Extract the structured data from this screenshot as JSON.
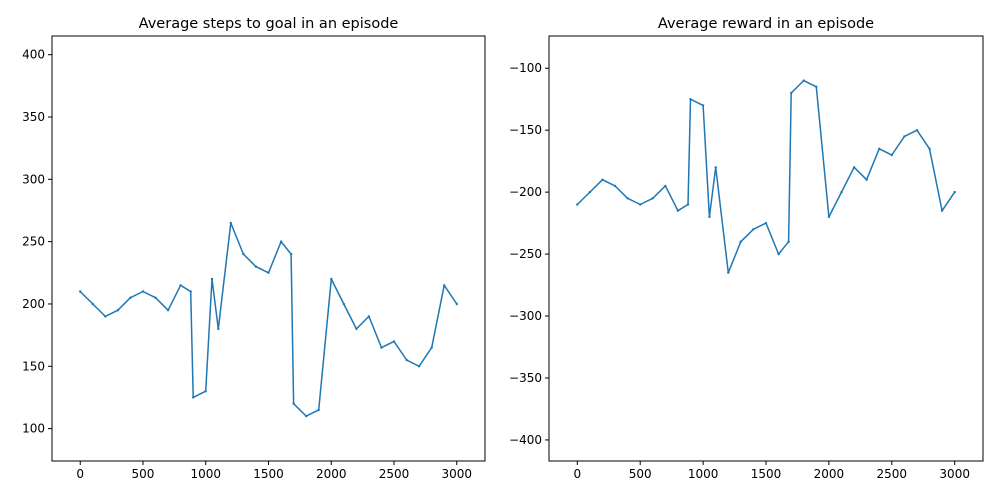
{
  "figure": {
    "background": "#ffffff"
  },
  "chart_data": [
    {
      "type": "line",
      "title": "Average steps to goal in an episode",
      "xlabel": "",
      "ylabel": "",
      "xlim": [
        -225,
        3225
      ],
      "ylim": [
        74,
        415
      ],
      "xticks": [
        0,
        500,
        1000,
        1500,
        2000,
        2500,
        3000
      ],
      "yticks": [
        100,
        150,
        200,
        250,
        300,
        350,
        400
      ],
      "grid": false,
      "legend": "none",
      "color": "#1f77b4",
      "series": [
        {
          "x": [
            0,
            100,
            200,
            300,
            400,
            500,
            600,
            700,
            800,
            880,
            900,
            1000,
            1050,
            1100,
            1200,
            1300,
            1400,
            1500,
            1600,
            1680,
            1700,
            1800,
            1900,
            2000,
            2100,
            2200,
            2300,
            2400,
            2500,
            2600,
            2700,
            2800,
            2900,
            3000
          ],
          "y": [
            210,
            200,
            190,
            195,
            205,
            210,
            205,
            195,
            215,
            210,
            125,
            130,
            220,
            180,
            265,
            240,
            230,
            225,
            250,
            240,
            120,
            110,
            115,
            220,
            200,
            180,
            190,
            165,
            170,
            155,
            150,
            165,
            215,
            200
          ]
        }
      ]
    },
    {
      "type": "line",
      "title": "Average reward in an episode",
      "xlabel": "",
      "ylabel": "",
      "xlim": [
        -225,
        3225
      ],
      "ylim": [
        -417,
        -74
      ],
      "xticks": [
        0,
        500,
        1000,
        1500,
        2000,
        2500,
        3000
      ],
      "yticks": [
        -100,
        -150,
        -200,
        -250,
        -300,
        -350,
        -400
      ],
      "grid": false,
      "legend": "none",
      "color": "#1f77b4",
      "series": [
        {
          "x": [
            0,
            100,
            200,
            300,
            400,
            500,
            600,
            700,
            800,
            880,
            900,
            1000,
            1050,
            1100,
            1200,
            1300,
            1400,
            1500,
            1600,
            1680,
            1700,
            1800,
            1900,
            2000,
            2100,
            2200,
            2300,
            2400,
            2500,
            2600,
            2700,
            2800,
            2900,
            3000
          ],
          "y": [
            -210,
            -200,
            -190,
            -195,
            -205,
            -210,
            -205,
            -195,
            -215,
            -210,
            -125,
            -130,
            -220,
            -180,
            -265,
            -240,
            -230,
            -225,
            -250,
            -240,
            -120,
            -110,
            -115,
            -220,
            -200,
            -180,
            -190,
            -165,
            -170,
            -155,
            -150,
            -165,
            -215,
            -200
          ]
        }
      ]
    }
  ]
}
